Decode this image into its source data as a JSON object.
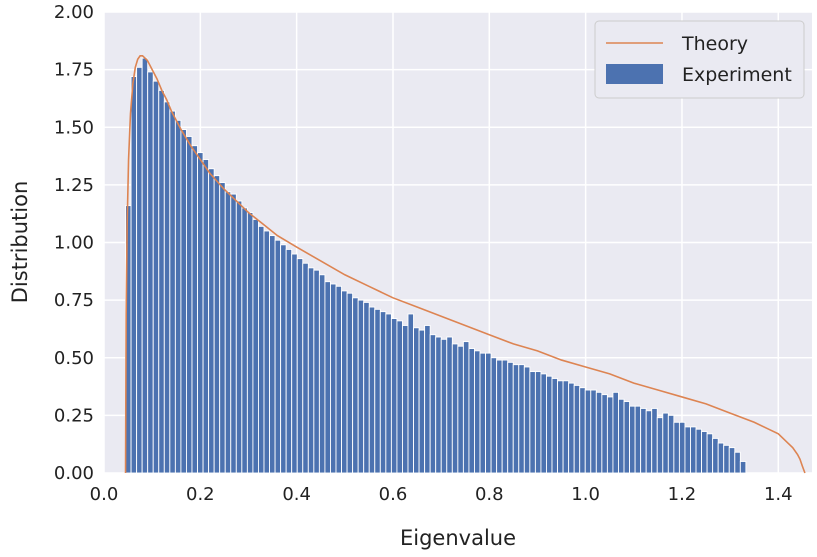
{
  "chart_data": {
    "type": "bar",
    "xlabel": "Eigenvalue",
    "ylabel": "Distribution",
    "xlim": [
      0.0,
      1.47
    ],
    "ylim": [
      0.0,
      2.0
    ],
    "xticks": [
      0.0,
      0.2,
      0.4,
      0.6,
      0.8,
      1.0,
      1.2,
      1.4
    ],
    "xtick_labels": [
      "0.0",
      "0.2",
      "0.4",
      "0.6",
      "0.8",
      "1.0",
      "1.2",
      "1.4"
    ],
    "yticks": [
      0.0,
      0.25,
      0.5,
      0.75,
      1.0,
      1.25,
      1.5,
      1.75,
      2.0
    ],
    "ytick_labels": [
      "0.00",
      "0.25",
      "0.50",
      "0.75",
      "1.00",
      "1.25",
      "1.50",
      "1.75",
      "2.00"
    ],
    "grid": true,
    "legend_position": "top-right",
    "colors": {
      "background": "#eaeaf2",
      "grid": "#ffffff",
      "bars": "#4c72b0",
      "theory": "#dd8452"
    },
    "theory_support": [
      0.0447,
      1.4553
    ],
    "series": [
      {
        "name": "Theory",
        "kind": "line",
        "x": [
          0.0447,
          0.046,
          0.048,
          0.051,
          0.055,
          0.06,
          0.065,
          0.07,
          0.075,
          0.08,
          0.085,
          0.09,
          0.095,
          0.1,
          0.11,
          0.12,
          0.13,
          0.14,
          0.15,
          0.16,
          0.18,
          0.2,
          0.22,
          0.25,
          0.28,
          0.3,
          0.33,
          0.36,
          0.4,
          0.45,
          0.5,
          0.55,
          0.6,
          0.65,
          0.7,
          0.75,
          0.8,
          0.85,
          0.9,
          0.95,
          1.0,
          1.05,
          1.1,
          1.15,
          1.2,
          1.25,
          1.3,
          1.35,
          1.38,
          1.4,
          1.42,
          1.43,
          1.44,
          1.445,
          1.45,
          1.4553
        ],
        "y": [
          0.0,
          0.69,
          1.07,
          1.36,
          1.56,
          1.69,
          1.76,
          1.795,
          1.81,
          1.81,
          1.8,
          1.79,
          1.77,
          1.75,
          1.71,
          1.66,
          1.62,
          1.57,
          1.53,
          1.49,
          1.42,
          1.36,
          1.3,
          1.23,
          1.17,
          1.13,
          1.08,
          1.03,
          0.98,
          0.92,
          0.86,
          0.81,
          0.76,
          0.72,
          0.68,
          0.64,
          0.6,
          0.56,
          0.53,
          0.49,
          0.46,
          0.43,
          0.39,
          0.36,
          0.33,
          0.3,
          0.26,
          0.22,
          0.19,
          0.17,
          0.13,
          0.11,
          0.08,
          0.06,
          0.03,
          0.0
        ]
      },
      {
        "name": "Experiment",
        "kind": "bar",
        "bin_start": 0.0447,
        "bin_width": 0.0115,
        "values": [
          1.16,
          1.72,
          1.76,
          1.8,
          1.74,
          1.7,
          1.66,
          1.61,
          1.57,
          1.53,
          1.49,
          1.46,
          1.42,
          1.39,
          1.36,
          1.32,
          1.29,
          1.26,
          1.22,
          1.21,
          1.18,
          1.15,
          1.13,
          1.1,
          1.07,
          1.05,
          1.03,
          1.01,
          0.99,
          0.97,
          0.95,
          0.93,
          0.91,
          0.89,
          0.88,
          0.86,
          0.83,
          0.82,
          0.81,
          0.79,
          0.78,
          0.76,
          0.75,
          0.74,
          0.72,
          0.71,
          0.7,
          0.69,
          0.67,
          0.66,
          0.64,
          0.69,
          0.63,
          0.62,
          0.64,
          0.6,
          0.59,
          0.58,
          0.59,
          0.56,
          0.55,
          0.57,
          0.54,
          0.53,
          0.52,
          0.52,
          0.5,
          0.49,
          0.49,
          0.48,
          0.47,
          0.47,
          0.46,
          0.44,
          0.44,
          0.43,
          0.42,
          0.41,
          0.4,
          0.4,
          0.39,
          0.38,
          0.37,
          0.36,
          0.36,
          0.35,
          0.34,
          0.33,
          0.35,
          0.32,
          0.31,
          0.29,
          0.29,
          0.28,
          0.27,
          0.28,
          0.24,
          0.26,
          0.25,
          0.22,
          0.22,
          0.2,
          0.2,
          0.19,
          0.18,
          0.17,
          0.15,
          0.13,
          0.12,
          0.11,
          0.09,
          0.05
        ]
      }
    ]
  }
}
